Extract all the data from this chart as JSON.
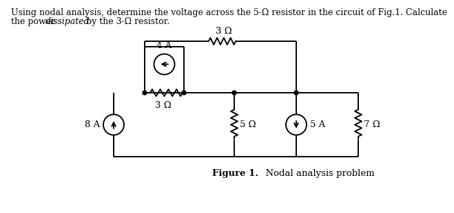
{
  "title_line1": "Using nodal analysis, determine the voltage across the 5-Ω resistor in the circuit of Fig.1. Calculate",
  "title_line2": "the power dissipated by the 3-Ω resistor.",
  "figure_label": "Figure 1.",
  "figure_desc": "  Nodal analysis problem",
  "bg_color": "#ffffff",
  "line_color": "#000000",
  "text_color": "#000000",
  "font_size_body": 9.0,
  "font_size_label": 9.5,
  "font_size_caption": 9.5,
  "r3top_label": "3 Ω",
  "r3mid_label": "3 Ω",
  "r5_label": "5 Ω",
  "r7_label": "7 Ω",
  "cs8_label": "8 A",
  "cs4_label": "4 A",
  "cs5_label": "5 A",
  "lw": 1.4
}
